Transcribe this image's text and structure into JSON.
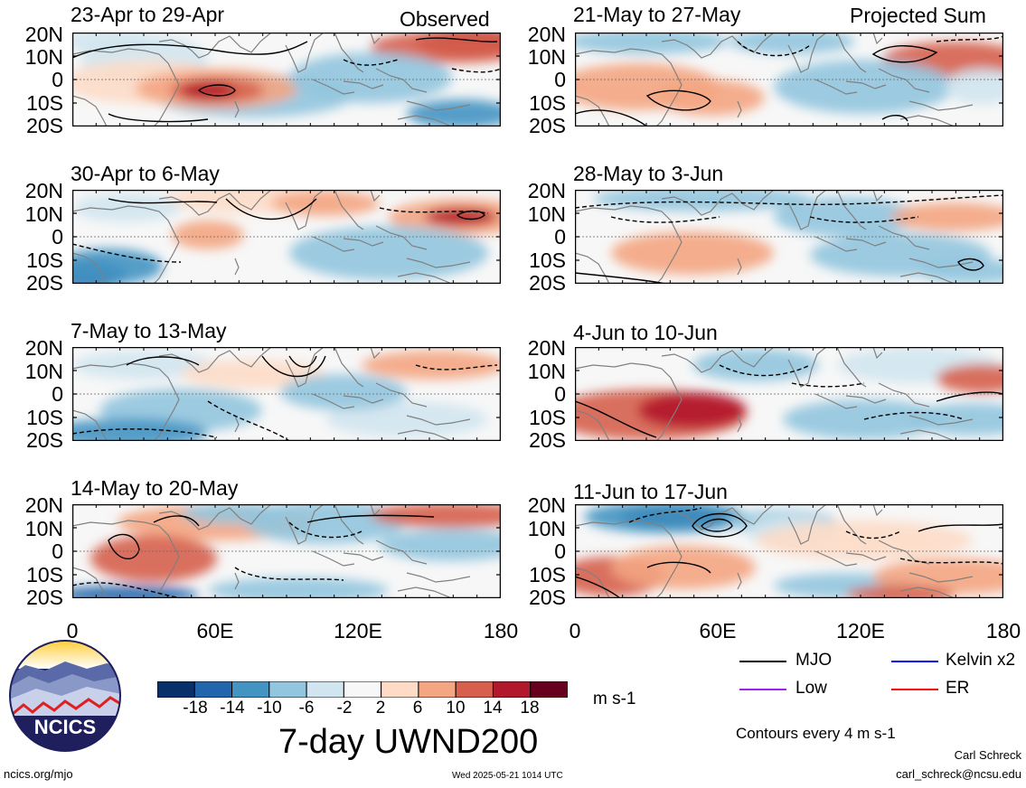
{
  "figure": {
    "title": "7-day UWND200",
    "units": "m s-1",
    "observed_label": "Observed",
    "projected_label": "Projected Sum",
    "contour_note": "Contours every 4 m s-1",
    "author": "Carl Schreck",
    "email": "carl_schreck@ncsu.edu",
    "site": "ncics.org/mjo",
    "timestamp": "Wed 2025-05-21 1014 UTC",
    "logo_text": "NCICS"
  },
  "latitude_labels": [
    "20N",
    "10N",
    "0",
    "10S",
    "20S"
  ],
  "longitude_labels": [
    "0",
    "60E",
    "120E",
    "180"
  ],
  "colorbar": {
    "ticks": [
      "-18",
      "-14",
      "-10",
      "-6",
      "-2",
      "2",
      "6",
      "10",
      "14",
      "18"
    ],
    "colors": [
      "#08306b",
      "#2166ac",
      "#4393c3",
      "#92c5de",
      "#d1e5f0",
      "#f7f7f7",
      "#fddbc7",
      "#f4a582",
      "#d6604d",
      "#b2182b",
      "#67001f"
    ]
  },
  "legend": [
    {
      "label": "MJO",
      "color": "#000000"
    },
    {
      "label": "Kelvin x2",
      "color": "#0000ff"
    },
    {
      "label": "Low",
      "color": "#a020f0"
    },
    {
      "label": "ER",
      "color": "#ff0000"
    }
  ],
  "panels": [
    {
      "title": "23-Apr to 29-Apr",
      "column": "observed"
    },
    {
      "title": "30-Apr to 6-May",
      "column": "observed"
    },
    {
      "title": "7-May to 13-May",
      "column": "observed"
    },
    {
      "title": "14-May to 20-May",
      "column": "observed"
    },
    {
      "title": "21-May to 27-May",
      "column": "projected"
    },
    {
      "title": "28-May to 3-Jun",
      "column": "projected"
    },
    {
      "title": "4-Jun to 10-Jun",
      "column": "projected"
    },
    {
      "title": "11-Jun to 17-Jun",
      "column": "projected"
    }
  ]
}
